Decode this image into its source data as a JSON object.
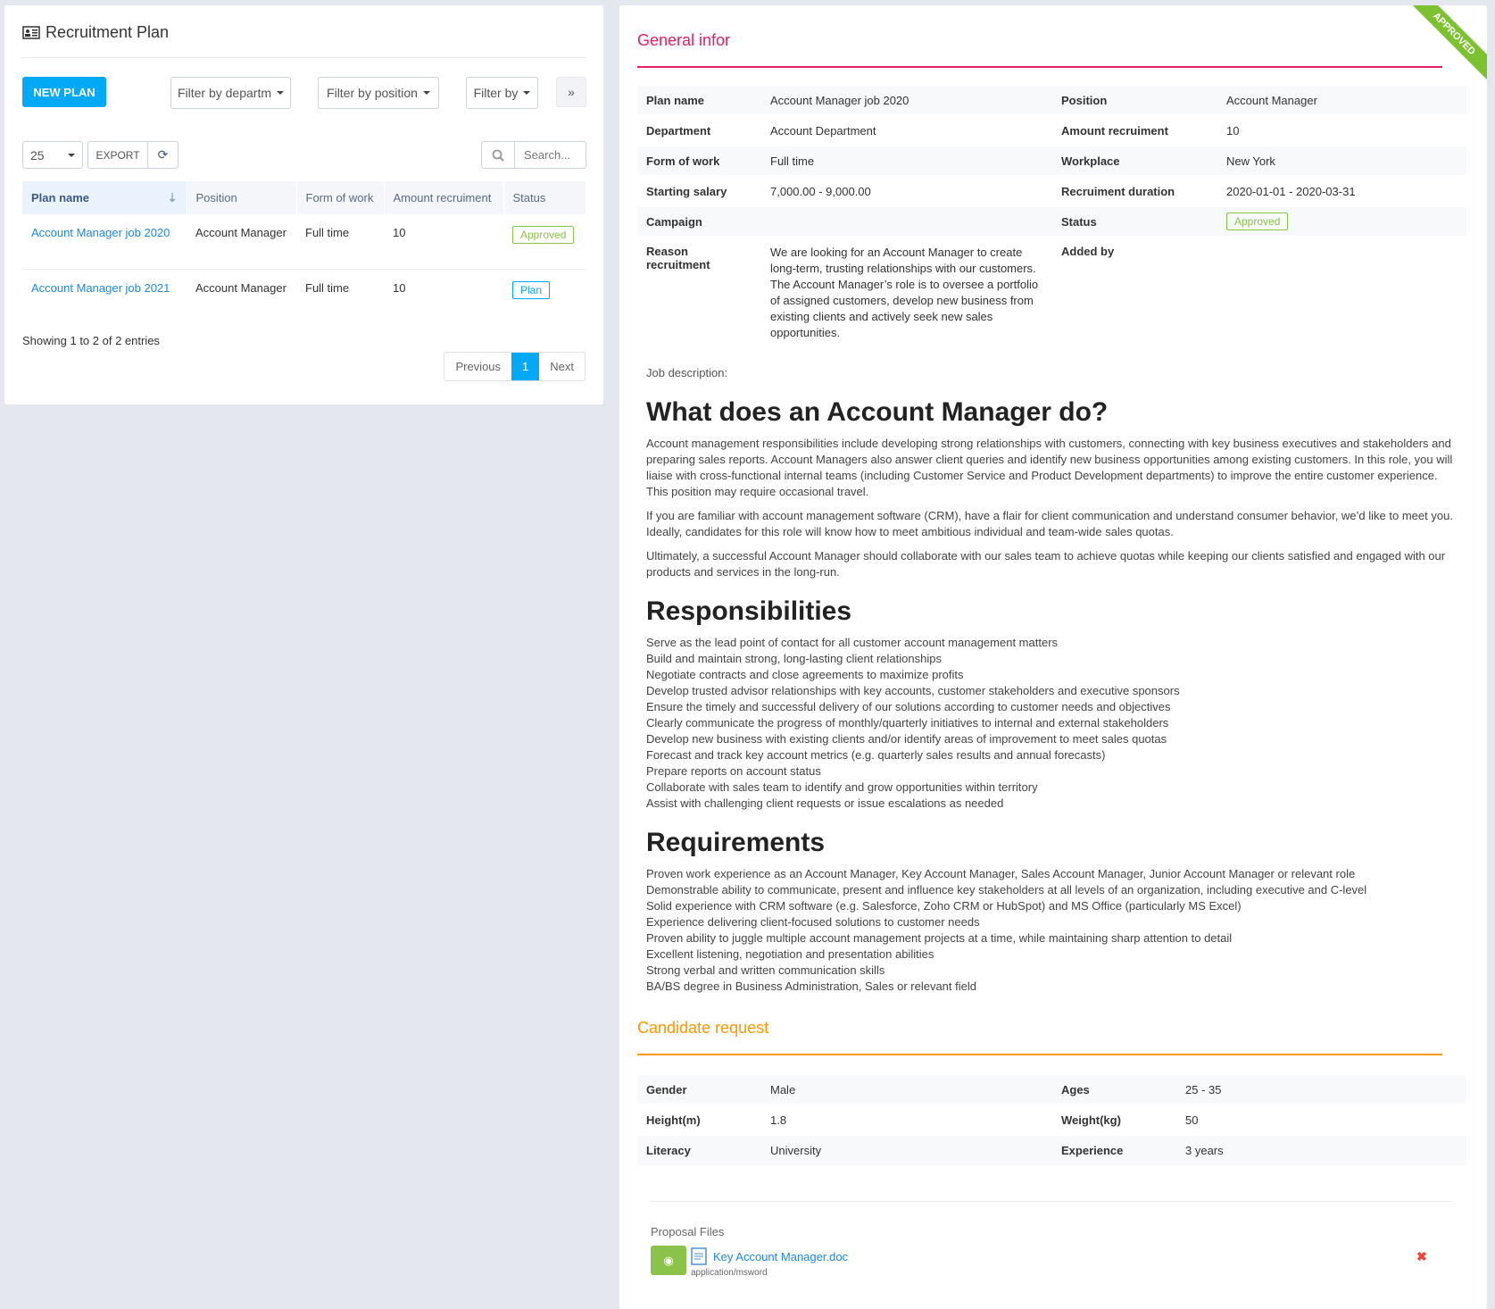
{
  "left": {
    "title": "Recruitment Plan",
    "new_plan": "NEW PLAN",
    "filters": [
      "Filter by departm",
      "Filter by position",
      "Filter by"
    ],
    "more": "»",
    "page_size": "25",
    "export": "EXPORT",
    "search_placeholder": "Search...",
    "columns": [
      "Plan name",
      "Position",
      "Form of work",
      "Amount recruiment",
      "Status"
    ],
    "rows": [
      {
        "plan": "Account Manager job 2020",
        "position": "Account Manager",
        "form": "Full time",
        "amount": "10",
        "status": "Approved"
      },
      {
        "plan": "Account Manager job 2021",
        "position": "Account Manager",
        "form": "Full time",
        "amount": "10",
        "status": "Plan"
      }
    ],
    "showing": "Showing 1 to 2 of 2 entries",
    "pager": {
      "prev": "Previous",
      "page": "1",
      "next": "Next"
    }
  },
  "right": {
    "ribbon": "APPROVED",
    "general_title": "General infor",
    "info": [
      [
        "Plan name",
        "Account Manager job 2020",
        "Position",
        "Account Manager"
      ],
      [
        "Department",
        "Account Department",
        "Amount recruiment",
        "10"
      ],
      [
        "Form of work",
        "Full time",
        "Workplace",
        "New York"
      ],
      [
        "Starting salary",
        "7,000.00 - 9,000.00",
        "Recruiment duration",
        "2020-01-01 - 2020-03-31"
      ],
      [
        "Campaign",
        "",
        "Status",
        "Approved"
      ],
      [
        "Reason recruitment",
        "We are looking for an Account Manager to create long-term, trusting relationships with our customers. The Account Manager’s role is to oversee a portfolio of assigned customers, develop new business from existing clients and actively seek new sales opportunities.",
        "Added by",
        ""
      ]
    ],
    "job_desc_label": "Job description:",
    "h1": "What does an Account Manager do?",
    "paras": [
      "Account management responsibilities include developing strong relationships with customers, connecting with key business executives and stakeholders and preparing sales reports. Account Managers also answer client queries and identify new business opportunities among existing customers. In this role, you will liaise with cross-functional internal teams (including Customer Service and Product Development departments) to improve the entire customer experience. This position may require occasional travel.",
      "If you are familiar with account management software (CRM), have a flair for client communication and understand consumer behavior, we’d like to meet you. Ideally, candidates for this role will know how to meet ambitious individual and team-wide sales quotas.",
      "Ultimately, a successful Account Manager should collaborate with our sales team to achieve quotas while keeping our clients satisfied and engaged with our products and services in the long-run."
    ],
    "h2": "Responsibilities",
    "responsibilities": [
      "Serve as the lead point of contact for all customer account management matters",
      "Build and maintain strong, long-lasting client relationships",
      "Negotiate contracts and close agreements to maximize profits",
      "Develop trusted advisor relationships with key accounts, customer stakeholders and executive sponsors",
      "Ensure the timely and successful delivery of our solutions according to customer needs and objectives",
      "Clearly communicate the progress of monthly/quarterly initiatives to internal and external stakeholders",
      "Develop new business with existing clients and/or identify areas of improvement to meet sales quotas",
      "Forecast and track key account metrics (e.g. quarterly sales results and annual forecasts)",
      "Prepare reports on account status",
      "Collaborate with sales team to identify and grow opportunities within territory",
      "Assist with challenging client requests or issue escalations as needed"
    ],
    "h3": "Requirements",
    "requirements": [
      "Proven work experience as an Account Manager, Key Account Manager, Sales Account Manager, Junior Account Manager or relevant role",
      "Demonstrable ability to communicate, present and influence key stakeholders at all levels of an organization, including executive and C-level",
      "Solid experience with CRM software (e.g. Salesforce, Zoho CRM or HubSpot) and MS Office (particularly MS Excel)",
      "Experience delivering client-focused solutions to customer needs",
      "Proven ability to juggle multiple account management projects at a time, while maintaining sharp attention to detail",
      "Excellent listening, negotiation and presentation abilities",
      "Strong verbal and written communication skills",
      "BA/BS degree in Business Administration, Sales or relevant field"
    ],
    "candidate_title": "Candidate request",
    "candidate": [
      [
        "Gender",
        "Male",
        "Ages",
        "25 - 35"
      ],
      [
        "Height(m)",
        "1.8",
        "Weight(kg)",
        "50"
      ],
      [
        "Literacy",
        "University",
        "Experience",
        "3 years"
      ]
    ],
    "files_label": "Proposal Files",
    "file": {
      "name": "Key Account Manager.doc",
      "type": "application/msword"
    },
    "colors": {
      "general": "#e91e63",
      "candidate": "#ff9800",
      "approved": "#8bc34a",
      "primary": "#03a9f4"
    }
  }
}
